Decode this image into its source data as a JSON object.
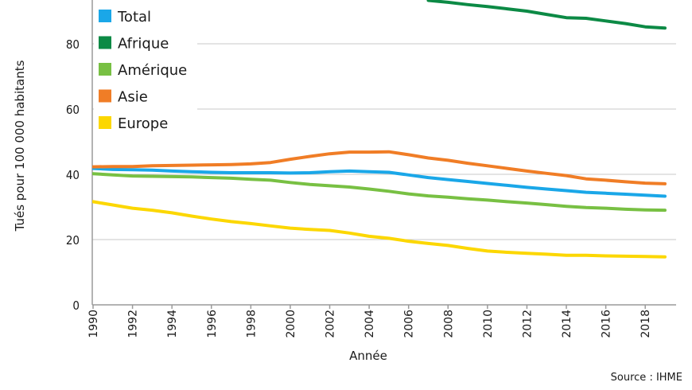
{
  "chart_data": {
    "type": "line",
    "xlabel": "Année",
    "ylabel": "Tués pour 100 000 habitants",
    "ylim": [
      0,
      90
    ],
    "xlim": [
      1990,
      2019
    ],
    "yticks": [
      0,
      20,
      40,
      60,
      80
    ],
    "xticks": [
      "1990",
      "1992",
      "1994",
      "1996",
      "1998",
      "2000",
      "2002",
      "2004",
      "2006",
      "2008",
      "2010",
      "2012",
      "2014",
      "2016",
      "2018"
    ],
    "grid": true,
    "legend_position": "top-left",
    "source": "Source : IHME",
    "x": [
      1990,
      1991,
      1992,
      1993,
      1994,
      1995,
      1996,
      1997,
      1998,
      1999,
      2000,
      2001,
      2002,
      2003,
      2004,
      2005,
      2006,
      2007,
      2008,
      2009,
      2010,
      2011,
      2012,
      2013,
      2014,
      2015,
      2016,
      2017,
      2018,
      2019
    ],
    "series": [
      {
        "name": "Total",
        "color": "#1aa7e8",
        "values": [
          41.8,
          41.5,
          41.4,
          41.3,
          41.0,
          40.8,
          40.6,
          40.5,
          40.5,
          40.5,
          40.4,
          40.5,
          40.8,
          41.0,
          40.8,
          40.6,
          39.8,
          39.0,
          38.4,
          37.8,
          37.2,
          36.6,
          36.0,
          35.5,
          35.0,
          34.5,
          34.2,
          33.9,
          33.6,
          33.3
        ]
      },
      {
        "name": "Afrique",
        "color": "#0c8a45",
        "values": [
          null,
          null,
          null,
          null,
          null,
          null,
          null,
          null,
          null,
          null,
          null,
          null,
          null,
          null,
          null,
          null,
          null,
          93.3,
          92.7,
          92.0,
          91.4,
          90.7,
          90.0,
          89.0,
          88.0,
          87.8,
          87.0,
          86.2,
          85.2,
          84.8
        ]
      },
      {
        "name": "Amérique",
        "color": "#78c043",
        "values": [
          40.2,
          39.8,
          39.5,
          39.4,
          39.3,
          39.2,
          39.0,
          38.8,
          38.5,
          38.2,
          37.5,
          36.9,
          36.5,
          36.1,
          35.5,
          34.8,
          34.0,
          33.4,
          33.0,
          32.5,
          32.1,
          31.6,
          31.2,
          30.7,
          30.2,
          29.8,
          29.6,
          29.3,
          29.1,
          29.0
        ]
      },
      {
        "name": "Asie",
        "color": "#f07d26",
        "values": [
          42.3,
          42.4,
          42.4,
          42.6,
          42.7,
          42.8,
          42.9,
          43.0,
          43.2,
          43.6,
          44.6,
          45.5,
          46.3,
          46.8,
          46.8,
          46.9,
          46.0,
          45.0,
          44.3,
          43.4,
          42.6,
          41.8,
          41.0,
          40.3,
          39.6,
          38.6,
          38.2,
          37.7,
          37.3,
          37.1
        ]
      },
      {
        "name": "Europe",
        "color": "#fcd700",
        "values": [
          31.6,
          30.6,
          29.6,
          29.0,
          28.2,
          27.2,
          26.3,
          25.5,
          24.9,
          24.2,
          23.5,
          23.1,
          22.8,
          22.0,
          21.0,
          20.4,
          19.5,
          18.8,
          18.2,
          17.3,
          16.5,
          16.1,
          15.8,
          15.5,
          15.2,
          15.2,
          15.0,
          14.9,
          14.8,
          14.7
        ]
      }
    ]
  }
}
